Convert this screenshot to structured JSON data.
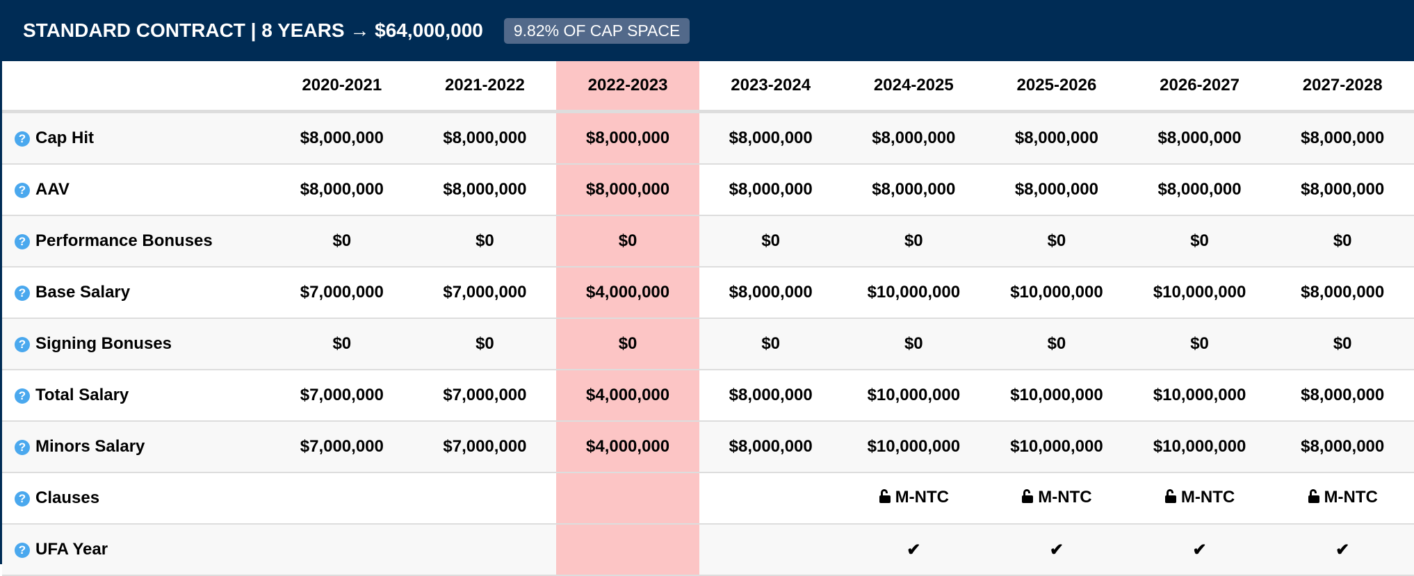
{
  "header": {
    "title": "STANDARD CONTRACT | 8 YEARS → $64,000,000",
    "badge": "9.82% OF CAP SPACE"
  },
  "colors": {
    "header_bg": "#002c55",
    "highlight": "#fcc5c5",
    "help_icon": "#4aa8ee"
  },
  "seasons": [
    "2020-2021",
    "2021-2022",
    "2022-2023",
    "2023-2024",
    "2024-2025",
    "2025-2026",
    "2026-2027",
    "2027-2028"
  ],
  "highlighted_season_index": 2,
  "rows": [
    {
      "label": "Cap Hit",
      "values": [
        "$8,000,000",
        "$8,000,000",
        "$8,000,000",
        "$8,000,000",
        "$8,000,000",
        "$8,000,000",
        "$8,000,000",
        "$8,000,000"
      ]
    },
    {
      "label": "AAV",
      "values": [
        "$8,000,000",
        "$8,000,000",
        "$8,000,000",
        "$8,000,000",
        "$8,000,000",
        "$8,000,000",
        "$8,000,000",
        "$8,000,000"
      ]
    },
    {
      "label": "Performance Bonuses",
      "values": [
        "$0",
        "$0",
        "$0",
        "$0",
        "$0",
        "$0",
        "$0",
        "$0"
      ]
    },
    {
      "label": "Base Salary",
      "values": [
        "$7,000,000",
        "$7,000,000",
        "$4,000,000",
        "$8,000,000",
        "$10,000,000",
        "$10,000,000",
        "$10,000,000",
        "$8,000,000"
      ]
    },
    {
      "label": "Signing Bonuses",
      "values": [
        "$0",
        "$0",
        "$0",
        "$0",
        "$0",
        "$0",
        "$0",
        "$0"
      ]
    },
    {
      "label": "Total Salary",
      "values": [
        "$7,000,000",
        "$7,000,000",
        "$4,000,000",
        "$8,000,000",
        "$10,000,000",
        "$10,000,000",
        "$10,000,000",
        "$8,000,000"
      ]
    },
    {
      "label": "Minors Salary",
      "values": [
        "$7,000,000",
        "$7,000,000",
        "$4,000,000",
        "$8,000,000",
        "$10,000,000",
        "$10,000,000",
        "$10,000,000",
        "$8,000,000"
      ]
    }
  ],
  "clauses": {
    "label": "Clauses",
    "values": [
      "",
      "",
      "",
      "",
      "M-NTC",
      "M-NTC",
      "M-NTC",
      "M-NTC"
    ]
  },
  "ufa": {
    "label": "UFA Year",
    "values": [
      false,
      false,
      false,
      false,
      true,
      true,
      true,
      true
    ]
  },
  "help_icon_glyph": "?",
  "check_glyph": "✔"
}
